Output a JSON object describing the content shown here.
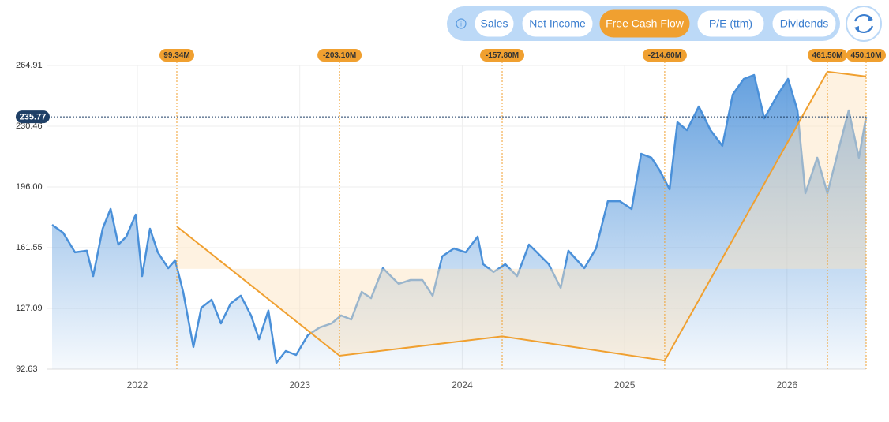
{
  "buttons": [
    "Sales",
    "Net Income",
    "Free Cash Flow",
    "P/E (ttm)",
    "Dividends"
  ],
  "active_button": 2,
  "chart_data": {
    "type": "line",
    "xlim": [
      2021.475,
      2026.487
    ],
    "xticks": [
      2022,
      2023,
      2024,
      2025,
      2026
    ],
    "ylim": [
      92.63,
      264.91
    ],
    "yticks": [
      92.63,
      127.09,
      161.55,
      {
        "value": 196,
        "label": "196.00"
      },
      230.46,
      264.91
    ],
    "y2lim": [
      -234.5,
      475.8
    ],
    "grid": true,
    "current_price": 235.77,
    "series": [
      {
        "color": "#4a90d9",
        "x": [
          2021.475,
          2021.543,
          2021.616,
          2021.689,
          2021.728,
          2021.786,
          2021.835,
          2021.883,
          2021.932,
          2021.99,
          2022.029,
          2022.078,
          2022.126,
          2022.19,
          2022.233,
          2022.282,
          2022.345,
          2022.394,
          2022.457,
          2022.515,
          2022.574,
          2022.637,
          2022.7,
          2022.749,
          2022.807,
          2022.856,
          2022.914,
          2022.977,
          2023.05,
          2023.123,
          2023.196,
          2023.254,
          2023.317,
          2023.381,
          2023.439,
          2023.512,
          2023.561,
          2023.609,
          2023.682,
          2023.755,
          2023.818,
          2023.877,
          2023.949,
          2024.022,
          2024.095,
          2024.129,
          2024.193,
          2024.265,
          2024.338,
          2024.411,
          2024.46,
          2024.533,
          2024.606,
          2024.654,
          2024.752,
          2024.824,
          2024.897,
          2024.97,
          2025.043,
          2025.102,
          2025.165,
          2025.213,
          2025.277,
          2025.325,
          2025.384,
          2025.457,
          2025.529,
          2025.602,
          2025.666,
          2025.734,
          2025.797,
          2025.86,
          2025.943,
          2026.006,
          2026.064,
          2026.113,
          2026.186,
          2026.249,
          2026.317,
          2026.38,
          2026.443,
          2026.487
        ],
        "values": [
          174.5,
          170.0,
          158.9,
          159.8,
          145.4,
          172.3,
          183.5,
          163.3,
          167.8,
          180.3,
          145.4,
          172.3,
          158.9,
          149.9,
          154.4,
          136.5,
          105.2,
          127.5,
          132.0,
          118.6,
          129.8,
          134.3,
          123.1,
          109.6,
          125.9,
          96.2,
          102.9,
          100.7,
          111.9,
          116.3,
          118.6,
          123.1,
          120.8,
          136.5,
          132.9,
          149.9,
          145.4,
          141.0,
          143.2,
          143.2,
          134.3,
          156.6,
          161.1,
          158.9,
          167.8,
          152.2,
          147.7,
          152.2,
          145.4,
          163.3,
          158.9,
          152.2,
          138.7,
          159.8,
          149.9,
          161.1,
          187.9,
          187.9,
          183.5,
          214.8,
          212.6,
          205.9,
          194.7,
          232.7,
          228.2,
          241.6,
          228.2,
          219.3,
          248.4,
          257.3,
          259.5,
          234.9,
          248.4,
          257.3,
          239.4,
          192.4,
          212.6,
          192.4,
          217.0,
          239.4,
          212.6,
          235.77
        ]
      },
      {
        "color": "#f0a030",
        "axis": "y2",
        "x": [
          2022.243,
          2023.245,
          2024.246,
          2025.247,
          2026.249,
          2026.487
        ],
        "values": [
          99.34,
          -203.1,
          -157.8,
          -214.6,
          461.5,
          450.1
        ],
        "value_labels": [
          "99.34M",
          "-203.10M",
          "-157.80M",
          "-214.60M",
          "461.50M",
          "450.10M"
        ]
      }
    ]
  }
}
